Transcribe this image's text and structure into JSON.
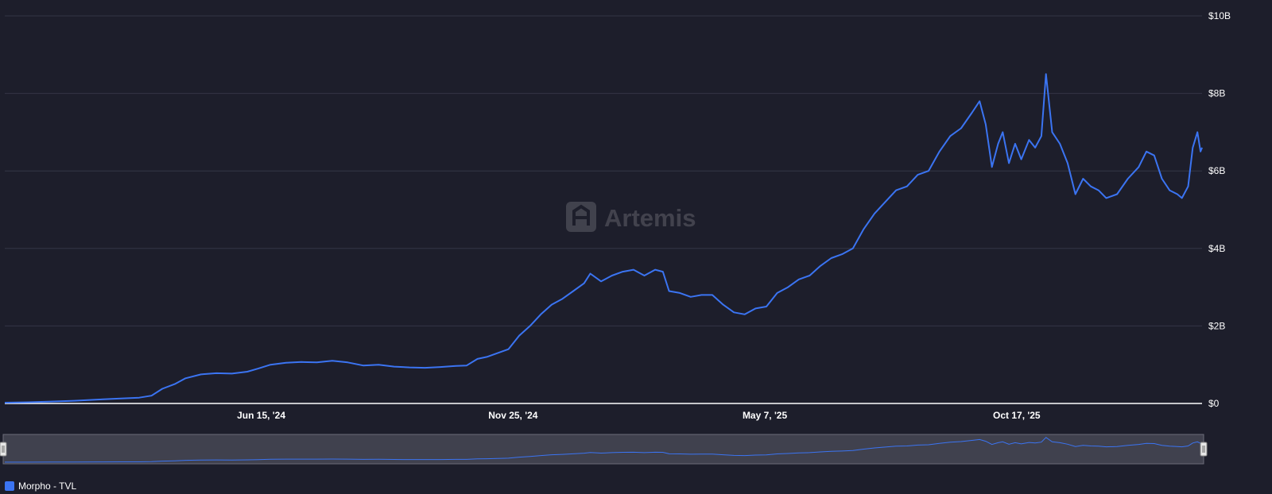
{
  "watermark": "Artemis",
  "legend": {
    "label": "Morpho - TVL",
    "color": "#3b74f2"
  },
  "colors": {
    "background": "#1d1e2b",
    "grid": "#343646",
    "line": "#3b74f2",
    "navigator_bg": "#40414e"
  },
  "chart_data": {
    "type": "line",
    "title": "",
    "xlabel": "",
    "ylabel": "",
    "x_range": [
      "2024-01-01",
      "2026-02-14"
    ],
    "ylim": [
      0,
      10000000000
    ],
    "y_ticks": [
      {
        "value": 0,
        "label": "$0"
      },
      {
        "value": 2000000000,
        "label": "$2B"
      },
      {
        "value": 4000000000,
        "label": "$4B"
      },
      {
        "value": 6000000000,
        "label": "$6B"
      },
      {
        "value": 8000000000,
        "label": "$8B"
      },
      {
        "value": 10000000000,
        "label": "$10B"
      }
    ],
    "x_ticks": [
      {
        "date": "2024-06-15",
        "label": "Jun 15, '24"
      },
      {
        "date": "2024-11-25",
        "label": "Nov 25, '24"
      },
      {
        "date": "2025-05-07",
        "label": "May 7, '25"
      },
      {
        "date": "2025-10-17",
        "label": "Oct 17, '25"
      }
    ],
    "grid": true,
    "legend_position": "bottom-left",
    "series": [
      {
        "name": "Morpho - TVL",
        "color": "#3b74f2",
        "points": [
          [
            "2024-01-01",
            0.02
          ],
          [
            "2024-01-16",
            0.03
          ],
          [
            "2024-01-31",
            0.05
          ],
          [
            "2024-02-15",
            0.07
          ],
          [
            "2024-03-01",
            0.1
          ],
          [
            "2024-03-16",
            0.13
          ],
          [
            "2024-03-28",
            0.15
          ],
          [
            "2024-04-05",
            0.2
          ],
          [
            "2024-04-12",
            0.38
          ],
          [
            "2024-04-20",
            0.5
          ],
          [
            "2024-04-27",
            0.65
          ],
          [
            "2024-05-07",
            0.75
          ],
          [
            "2024-05-17",
            0.78
          ],
          [
            "2024-05-27",
            0.77
          ],
          [
            "2024-06-06",
            0.82
          ],
          [
            "2024-06-13",
            0.9
          ],
          [
            "2024-06-21",
            1.0
          ],
          [
            "2024-07-01",
            1.05
          ],
          [
            "2024-07-11",
            1.07
          ],
          [
            "2024-07-21",
            1.06
          ],
          [
            "2024-07-31",
            1.1
          ],
          [
            "2024-08-10",
            1.06
          ],
          [
            "2024-08-20",
            0.98
          ],
          [
            "2024-08-30",
            1.0
          ],
          [
            "2024-09-09",
            0.95
          ],
          [
            "2024-09-19",
            0.93
          ],
          [
            "2024-09-29",
            0.92
          ],
          [
            "2024-10-09",
            0.94
          ],
          [
            "2024-10-19",
            0.97
          ],
          [
            "2024-10-26",
            0.98
          ],
          [
            "2024-11-02",
            1.15
          ],
          [
            "2024-11-08",
            1.2
          ],
          [
            "2024-11-15",
            1.3
          ],
          [
            "2024-11-22",
            1.4
          ],
          [
            "2024-11-29",
            1.75
          ],
          [
            "2024-12-06",
            2.0
          ],
          [
            "2024-12-13",
            2.3
          ],
          [
            "2024-12-20",
            2.55
          ],
          [
            "2024-12-27",
            2.7
          ],
          [
            "2025-01-03",
            2.9
          ],
          [
            "2025-01-10",
            3.1
          ],
          [
            "2025-01-14",
            3.35
          ],
          [
            "2025-01-21",
            3.15
          ],
          [
            "2025-01-28",
            3.3
          ],
          [
            "2025-02-04",
            3.4
          ],
          [
            "2025-02-11",
            3.45
          ],
          [
            "2025-02-18",
            3.3
          ],
          [
            "2025-02-25",
            3.45
          ],
          [
            "2025-03-02",
            3.4
          ],
          [
            "2025-03-06",
            2.9
          ],
          [
            "2025-03-13",
            2.85
          ],
          [
            "2025-03-20",
            2.75
          ],
          [
            "2025-03-27",
            2.8
          ],
          [
            "2025-04-03",
            2.8
          ],
          [
            "2025-04-10",
            2.55
          ],
          [
            "2025-04-17",
            2.35
          ],
          [
            "2025-04-24",
            2.3
          ],
          [
            "2025-05-01",
            2.45
          ],
          [
            "2025-05-08",
            2.5
          ],
          [
            "2025-05-15",
            2.85
          ],
          [
            "2025-05-22",
            3.0
          ],
          [
            "2025-05-29",
            3.2
          ],
          [
            "2025-06-05",
            3.3
          ],
          [
            "2025-06-12",
            3.55
          ],
          [
            "2025-06-19",
            3.75
          ],
          [
            "2025-06-26",
            3.85
          ],
          [
            "2025-07-03",
            4.0
          ],
          [
            "2025-07-10",
            4.5
          ],
          [
            "2025-07-17",
            4.9
          ],
          [
            "2025-07-24",
            5.2
          ],
          [
            "2025-07-31",
            5.5
          ],
          [
            "2025-08-07",
            5.6
          ],
          [
            "2025-08-14",
            5.9
          ],
          [
            "2025-08-21",
            6.0
          ],
          [
            "2025-08-28",
            6.5
          ],
          [
            "2025-09-04",
            6.9
          ],
          [
            "2025-09-11",
            7.1
          ],
          [
            "2025-09-18",
            7.5
          ],
          [
            "2025-09-23",
            7.8
          ],
          [
            "2025-09-27",
            7.2
          ],
          [
            "2025-10-01",
            6.1
          ],
          [
            "2025-10-05",
            6.7
          ],
          [
            "2025-10-08",
            7.0
          ],
          [
            "2025-10-12",
            6.2
          ],
          [
            "2025-10-16",
            6.7
          ],
          [
            "2025-10-20",
            6.3
          ],
          [
            "2025-10-25",
            6.8
          ],
          [
            "2025-10-29",
            6.6
          ],
          [
            "2025-11-02",
            6.9
          ],
          [
            "2025-11-05",
            8.5
          ],
          [
            "2025-11-09",
            7.0
          ],
          [
            "2025-11-14",
            6.7
          ],
          [
            "2025-11-19",
            6.2
          ],
          [
            "2025-11-24",
            5.4
          ],
          [
            "2025-11-29",
            5.8
          ],
          [
            "2025-12-04",
            5.6
          ],
          [
            "2025-12-09",
            5.5
          ],
          [
            "2025-12-14",
            5.3
          ],
          [
            "2025-12-21",
            5.4
          ],
          [
            "2025-12-28",
            5.8
          ],
          [
            "2026-01-04",
            6.1
          ],
          [
            "2026-01-09",
            6.5
          ],
          [
            "2026-01-14",
            6.4
          ],
          [
            "2026-01-19",
            5.8
          ],
          [
            "2026-01-24",
            5.5
          ],
          [
            "2026-01-29",
            5.4
          ],
          [
            "2026-02-01",
            5.3
          ],
          [
            "2026-02-05",
            5.6
          ],
          [
            "2026-02-08",
            6.6
          ],
          [
            "2026-02-11",
            7.0
          ],
          [
            "2026-02-13",
            6.5
          ],
          [
            "2026-02-14",
            6.6
          ]
        ]
      }
    ]
  }
}
